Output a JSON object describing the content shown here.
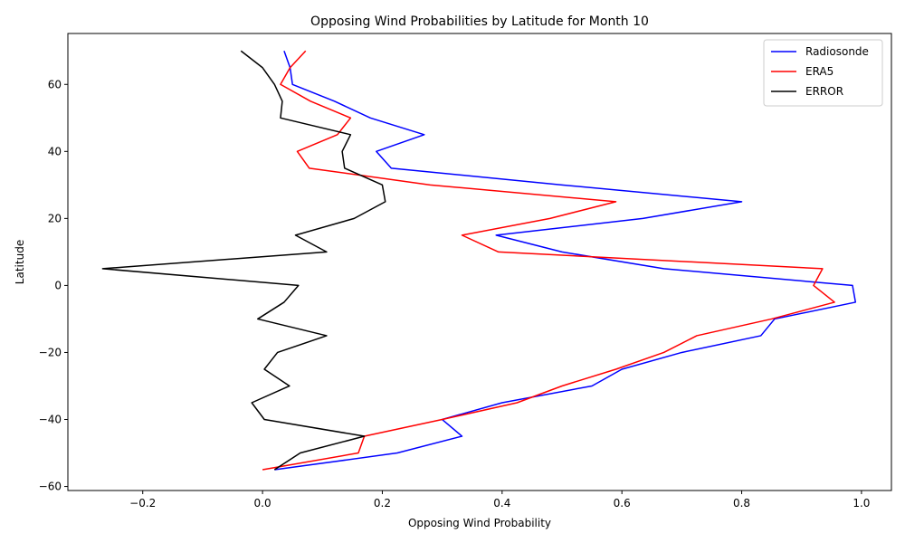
{
  "chart_data": {
    "type": "line",
    "title": "Opposing Wind Probabilities by Latitude for Month 10",
    "xlabel": "Opposing Wind Probability",
    "ylabel": "Latitude",
    "xlim": [
      -0.325,
      1.05
    ],
    "ylim": [
      -61.2,
      75.2
    ],
    "xticks": [
      -0.2,
      0.0,
      0.2,
      0.4,
      0.6,
      0.8,
      1.0
    ],
    "xtick_labels": [
      "−0.2",
      "0.0",
      "0.2",
      "0.4",
      "0.6",
      "0.8",
      "1.0"
    ],
    "yticks": [
      -60,
      -40,
      -20,
      0,
      20,
      40,
      60
    ],
    "ytick_labels": [
      "−60",
      "−40",
      "−20",
      "0",
      "20",
      "40",
      "60"
    ],
    "grid": false,
    "legend": "top-right",
    "series": [
      {
        "name": "Radiosonde",
        "color": "#0000ff",
        "points": [
          [
            0.036,
            70
          ],
          [
            0.046,
            65
          ],
          [
            0.05,
            60
          ],
          [
            0.12,
            55
          ],
          [
            0.18,
            50
          ],
          [
            0.27,
            45
          ],
          [
            0.19,
            40
          ],
          [
            0.215,
            35
          ],
          [
            0.5,
            30
          ],
          [
            0.8,
            25
          ],
          [
            0.635,
            20
          ],
          [
            0.39,
            15
          ],
          [
            0.5,
            10
          ],
          [
            0.67,
            5
          ],
          [
            0.985,
            0
          ],
          [
            0.99,
            -5
          ],
          [
            0.855,
            -10
          ],
          [
            0.832,
            -15
          ],
          [
            0.7,
            -20
          ],
          [
            0.6,
            -25
          ],
          [
            0.55,
            -30
          ],
          [
            0.4,
            -35
          ],
          [
            0.3,
            -40
          ],
          [
            0.333,
            -45
          ],
          [
            0.225,
            -50
          ],
          [
            0.02,
            -55
          ]
        ]
      },
      {
        "name": "ERA5",
        "color": "#ff0000",
        "points": [
          [
            0.072,
            70
          ],
          [
            0.046,
            65
          ],
          [
            0.03,
            60
          ],
          [
            0.08,
            55
          ],
          [
            0.147,
            50
          ],
          [
            0.125,
            45
          ],
          [
            0.058,
            40
          ],
          [
            0.078,
            35
          ],
          [
            0.28,
            30
          ],
          [
            0.59,
            25
          ],
          [
            0.48,
            20
          ],
          [
            0.333,
            15
          ],
          [
            0.394,
            10
          ],
          [
            0.935,
            5
          ],
          [
            0.92,
            0
          ],
          [
            0.955,
            -5
          ],
          [
            0.85,
            -10
          ],
          [
            0.725,
            -15
          ],
          [
            0.67,
            -20
          ],
          [
            0.59,
            -25
          ],
          [
            0.5,
            -30
          ],
          [
            0.425,
            -35
          ],
          [
            0.3,
            -40
          ],
          [
            0.17,
            -45
          ],
          [
            0.16,
            -50
          ],
          [
            0.0,
            -55
          ]
        ]
      },
      {
        "name": "ERROR",
        "color": "#000000",
        "points": [
          [
            -0.036,
            70
          ],
          [
            0.0,
            65
          ],
          [
            0.02,
            60
          ],
          [
            0.033,
            55
          ],
          [
            0.03,
            50
          ],
          [
            0.147,
            45
          ],
          [
            0.133,
            40
          ],
          [
            0.137,
            35
          ],
          [
            0.2,
            30
          ],
          [
            0.205,
            25
          ],
          [
            0.153,
            20
          ],
          [
            0.055,
            15
          ],
          [
            0.107,
            10
          ],
          [
            -0.267,
            5
          ],
          [
            0.06,
            0
          ],
          [
            0.036,
            -5
          ],
          [
            -0.008,
            -10
          ],
          [
            0.107,
            -15
          ],
          [
            0.025,
            -20
          ],
          [
            0.003,
            -25
          ],
          [
            0.045,
            -30
          ],
          [
            -0.018,
            -35
          ],
          [
            0.003,
            -40
          ],
          [
            0.17,
            -45
          ],
          [
            0.063,
            -50
          ],
          [
            0.02,
            -55
          ]
        ]
      }
    ]
  }
}
